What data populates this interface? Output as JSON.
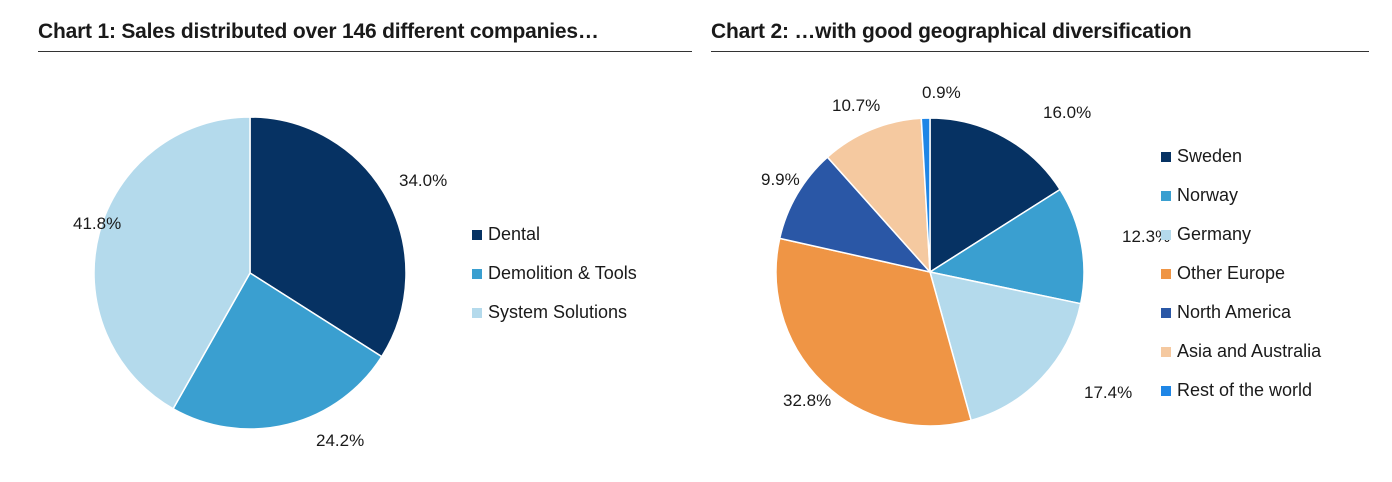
{
  "chart_data": [
    {
      "type": "pie",
      "title": "Chart 1: Sales distributed over 146 different companies…",
      "categories": [
        "Dental",
        "Demolition & Tools",
        "System Solutions"
      ],
      "values": [
        34.0,
        24.2,
        41.8
      ],
      "value_labels": [
        "34.0%",
        "24.2%",
        "41.8%"
      ],
      "colors": [
        "#063263",
        "#3a9fd0",
        "#b4daec"
      ],
      "legend": "right"
    },
    {
      "type": "pie",
      "title": "Chart 2: …with good geographical diversification",
      "categories": [
        "Sweden",
        "Norway",
        "Germany",
        "Other Europe",
        "North America",
        "Asia and Australia",
        "Rest of the world"
      ],
      "values": [
        16.0,
        12.3,
        17.4,
        32.8,
        9.9,
        10.7,
        0.9
      ],
      "value_labels": [
        "16.0%",
        "12.3%",
        "17.4%",
        "32.8%",
        "9.9%",
        "10.7%",
        "0.9%"
      ],
      "colors": [
        "#063263",
        "#3a9fd0",
        "#b4daec",
        "#ef9545",
        "#2a57a6",
        "#f5c9a0",
        "#1f86e6"
      ],
      "legend": "right"
    }
  ]
}
